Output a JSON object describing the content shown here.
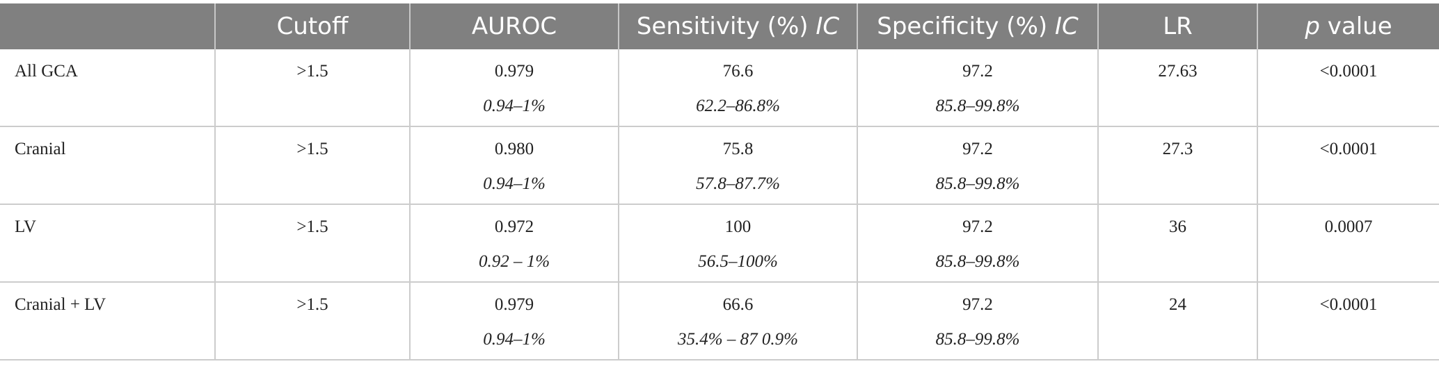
{
  "headers": {
    "c0": "",
    "cutoff": "Cutoff",
    "auroc": "AUROC",
    "sensitivity": "Sensitivity (%)",
    "sensitivity_ic": "IC",
    "specificity": "Specificity (%)",
    "specificity_ic": "IC",
    "lr": "LR",
    "p_italic": "p",
    "p_rest": " value"
  },
  "rows": [
    {
      "label": "All GCA",
      "cutoff": ">1.5",
      "auroc": "0.979",
      "auroc_ci": "0.94–1%",
      "sens": "76.6",
      "sens_ci": "62.2–86.8%",
      "spec": "97.2",
      "spec_ci": "85.8–99.8%",
      "lr": "27.63",
      "p": "<0.0001"
    },
    {
      "label": "Cranial",
      "cutoff": ">1.5",
      "auroc": "0.980",
      "auroc_ci": "0.94–1%",
      "sens": "75.8",
      "sens_ci": "57.8–87.7%",
      "spec": "97.2",
      "spec_ci": "85.8–99.8%",
      "lr": "27.3",
      "p": "<0.0001"
    },
    {
      "label": "LV",
      "cutoff": ">1.5",
      "auroc": "0.972",
      "auroc_ci": "0.92 – 1%",
      "sens": "100",
      "sens_ci": "56.5–100%",
      "spec": "97.2",
      "spec_ci": "85.8–99.8%",
      "lr": "36",
      "p": "0.0007"
    },
    {
      "label": "Cranial + LV",
      "cutoff": ">1.5",
      "auroc": "0.979",
      "auroc_ci": "0.94–1%",
      "sens": "66.6",
      "sens_ci": "35.4% – 87 0.9%",
      "spec": "97.2",
      "spec_ci": "85.8–99.8%",
      "lr": "24",
      "p": "<0.0001"
    }
  ]
}
